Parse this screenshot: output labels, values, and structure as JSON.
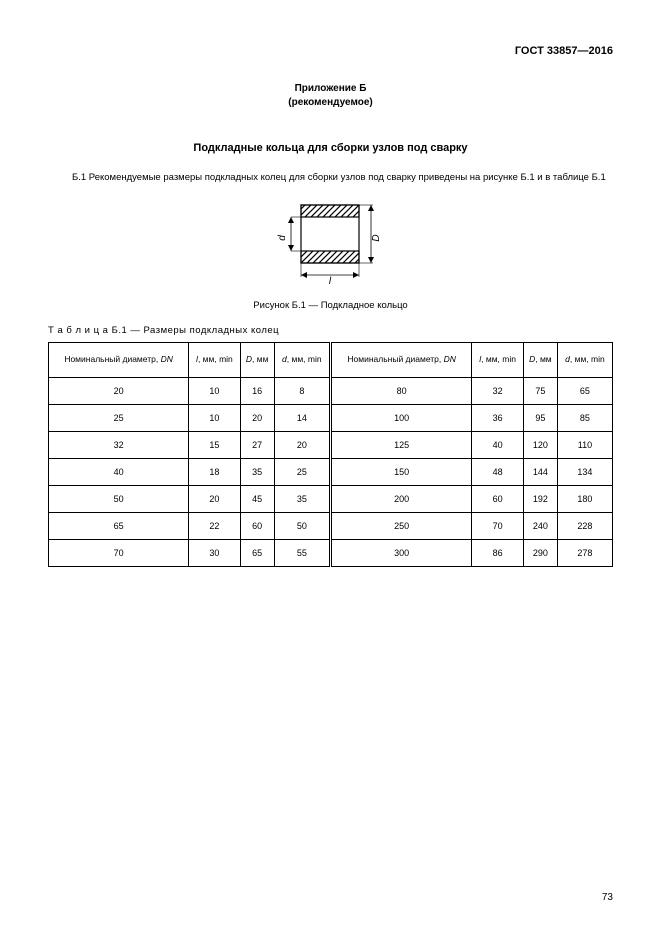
{
  "doc_id": "ГОСТ 33857—2016",
  "appendix_line1": "Приложение Б",
  "appendix_line2": "(рекомендуемое)",
  "section_title": "Подкладные кольца для сборки узлов под сварку",
  "intro_text": "Б.1 Рекомендуемые размеры подкладных колец для сборки узлов под сварку приведены на рисунке Б.1 и в таблице Б.1",
  "figure": {
    "caption": "Рисунок Б.1 — Подкладное кольцо",
    "label_d_small": "d",
    "label_D_big": "D",
    "label_l": "l",
    "hatch_color": "#000000",
    "stroke_color": "#000000",
    "bg_color": "#ffffff"
  },
  "table": {
    "caption_prefix": "Т а б л и ц а",
    "caption_rest": "  Б.1 — Размеры подкладных колец",
    "columns_left": [
      "Номинальный диаметр, <span class='ital'>DN</span>",
      "<span class='ital'>l</span>, мм, min",
      "<span class='ital'>D</span>, мм",
      "<span class='ital'>d</span>, мм, min"
    ],
    "columns_right": [
      "Номинальный диаметр, <span class='ital'>DN</span>",
      "<span class='ital'>l</span>, мм, min",
      "<span class='ital'>D</span>, мм",
      "<span class='ital'>d</span>, мм, min"
    ],
    "rows": [
      [
        [
          "20",
          "10",
          "16",
          "8"
        ],
        [
          "80",
          "32",
          "75",
          "65"
        ]
      ],
      [
        [
          "25",
          "10",
          "20",
          "14"
        ],
        [
          "100",
          "36",
          "95",
          "85"
        ]
      ],
      [
        [
          "32",
          "15",
          "27",
          "20"
        ],
        [
          "125",
          "40",
          "120",
          "110"
        ]
      ],
      [
        [
          "40",
          "18",
          "35",
          "25"
        ],
        [
          "150",
          "48",
          "144",
          "134"
        ]
      ],
      [
        [
          "50",
          "20",
          "45",
          "35"
        ],
        [
          "200",
          "60",
          "192",
          "180"
        ]
      ],
      [
        [
          "65",
          "22",
          "60",
          "50"
        ],
        [
          "250",
          "70",
          "240",
          "228"
        ]
      ],
      [
        [
          "70",
          "30",
          "65",
          "55"
        ],
        [
          "300",
          "86",
          "290",
          "278"
        ]
      ]
    ]
  },
  "page_number": "73"
}
